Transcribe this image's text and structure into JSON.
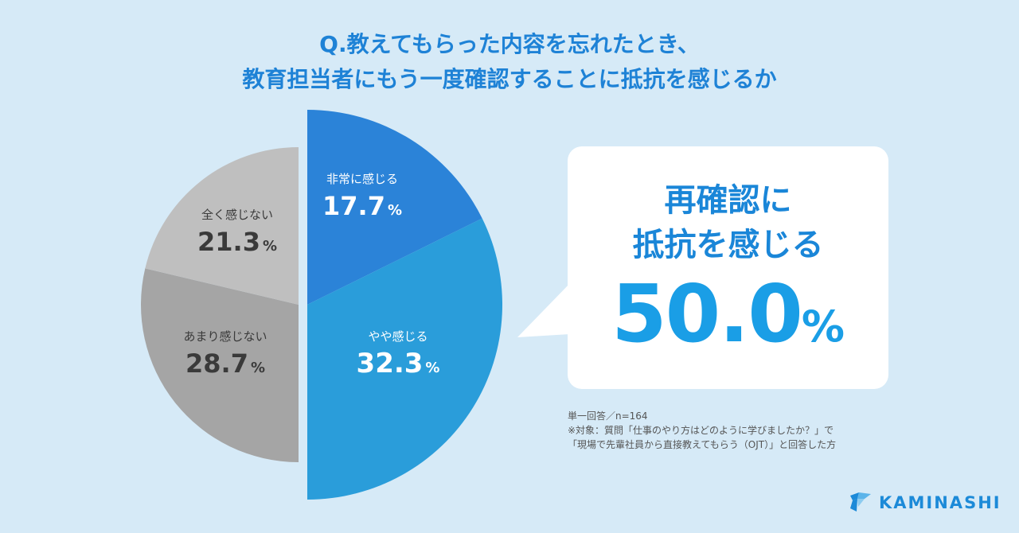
{
  "title": {
    "line1": "Q.教えてもらった内容を忘れたとき、",
    "line2": "教育担当者にもう一度確認することに抵抗を感じるか"
  },
  "colors": {
    "background": "#d6eaf7",
    "accent": "#1e82d6",
    "slice_strong": "#2b83d8",
    "slice_some": "#2a9dda",
    "slice_notmuch": "#a5a5a5",
    "slice_none": "#bfbfbf"
  },
  "chart_data": {
    "type": "pie",
    "unit": "%",
    "slices": [
      {
        "label": "非常に感じる",
        "value": 17.7,
        "display": "17.7"
      },
      {
        "label": "やや感じる",
        "value": 32.3,
        "display": "32.3"
      },
      {
        "label": "あまり感じない",
        "value": 28.7,
        "display": "28.7"
      },
      {
        "label": "全く感じない",
        "value": 21.3,
        "display": "21.3"
      }
    ]
  },
  "callout": {
    "line1": "再確認に",
    "line2": "抵抗を感じる",
    "value": "50.0",
    "unit": "%"
  },
  "notes": {
    "line1": "単一回答／n=164",
    "line2": "※対象：質問「仕事のやり方はどのように学びましたか？」で",
    "line3": "「現場で先輩社員から直接教えてもらう（OJT）」と回答した方"
  },
  "logo": {
    "text": "KAMINASHI",
    "icon": "kaminashi-logo-icon"
  }
}
